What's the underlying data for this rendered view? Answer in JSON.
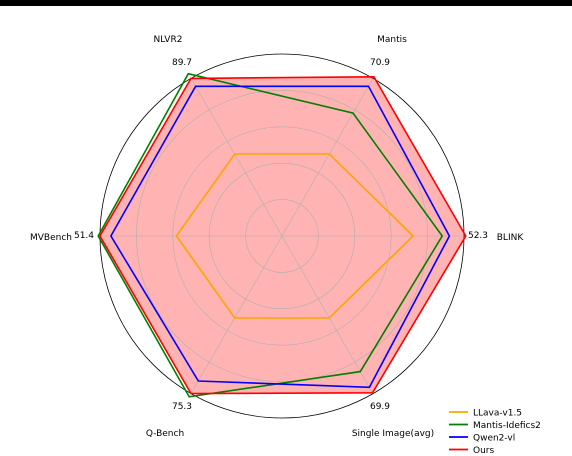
{
  "chart_data": {
    "type": "radar",
    "axes": [
      {
        "name": "BLINK",
        "max_label": "52.3"
      },
      {
        "name": "Mantis",
        "max_label": "70.9"
      },
      {
        "name": "NLVR2",
        "max_label": "89.7"
      },
      {
        "name": "MVBench",
        "max_label": "51.4"
      },
      {
        "name": "Q-Bench",
        "max_label": "75.3"
      },
      {
        "name": "Single Image(avg)",
        "max_label": "69.9"
      }
    ],
    "scale_note": "values shown as fraction of outer ring (max of each axis)",
    "rings": [
      0.2,
      0.4,
      0.6,
      0.8,
      1.0
    ],
    "series": [
      {
        "name": "LLava-v1.5",
        "color": "#ffa500",
        "fill": false,
        "values": [
          0.72,
          0.52,
          0.52,
          0.58,
          0.52,
          0.52
        ]
      },
      {
        "name": "Mantis-Idefics2",
        "color": "#008000",
        "fill": false,
        "values": [
          0.88,
          0.78,
          1.03,
          1.01,
          1.02,
          0.86
        ]
      },
      {
        "name": "Qwen2-vl",
        "color": "#0000ff",
        "fill": false,
        "values": [
          0.92,
          0.95,
          0.95,
          0.94,
          0.92,
          0.96
        ]
      },
      {
        "name": "Ours",
        "color": "#ff0000",
        "fill": true,
        "fill_color": "#ffb3b3",
        "values": [
          1.01,
          1.01,
          1.0,
          1.0,
          1.0,
          0.995
        ]
      }
    ],
    "grid": true,
    "legend_position": "bottom-right"
  }
}
